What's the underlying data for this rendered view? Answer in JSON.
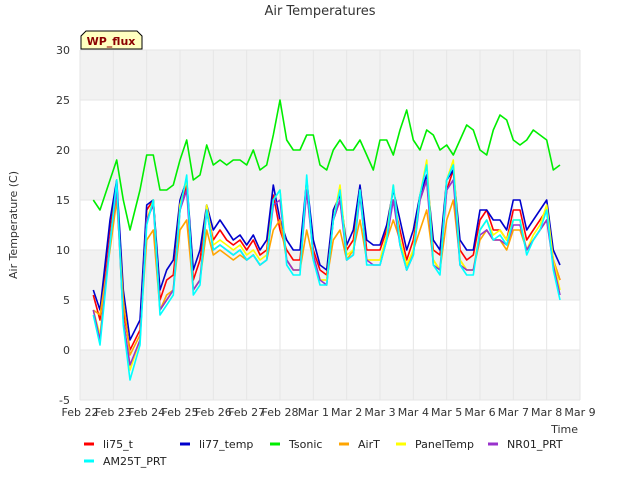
{
  "chart_data": {
    "type": "line",
    "title": "Air Temperatures",
    "xlabel": "Time",
    "ylabel": "Air Temperature (C)",
    "badge": "WP_flux",
    "ylim": [
      -5,
      30
    ],
    "yticks": [
      -5,
      0,
      5,
      10,
      15,
      20,
      25,
      30
    ],
    "xlim": [
      0,
      15
    ],
    "x_tick_labels": [
      "Feb 22",
      "Feb 23",
      "Feb 24",
      "Feb 25",
      "Feb 26",
      "Feb 27",
      "Feb 28",
      "Mar 1",
      "Mar 2",
      "Mar 3",
      "Mar 4",
      "Mar 5",
      "Mar 6",
      "Mar 7",
      "Mar 8",
      "Mar 9"
    ],
    "x": [
      0.4,
      0.6,
      0.9,
      1.1,
      1.3,
      1.5,
      1.8,
      2.0,
      2.2,
      2.4,
      2.6,
      2.8,
      3.0,
      3.2,
      3.4,
      3.6,
      3.8,
      4.0,
      4.2,
      4.4,
      4.6,
      4.8,
      5.0,
      5.2,
      5.4,
      5.6,
      5.8,
      6.0,
      6.2,
      6.4,
      6.6,
      6.8,
      7.0,
      7.2,
      7.4,
      7.6,
      7.8,
      8.0,
      8.2,
      8.4,
      8.6,
      8.8,
      9.0,
      9.2,
      9.4,
      9.6,
      9.8,
      10.0,
      10.2,
      10.4,
      10.6,
      10.8,
      11.0,
      11.2,
      11.4,
      11.6,
      11.8,
      12.0,
      12.2,
      12.4,
      12.6,
      12.8,
      13.0,
      13.2,
      13.4,
      13.6,
      13.8,
      14.0,
      14.2,
      14.4
    ],
    "grid": true,
    "bands": "alternating light gray",
    "legend_position": "bottom",
    "series": [
      {
        "name": "li75_t",
        "color": "#ff0000",
        "values": [
          5.5,
          3,
          12,
          16.5,
          4,
          0,
          2,
          14,
          15,
          5,
          7,
          7.5,
          14,
          16.5,
          7,
          9,
          14,
          11,
          12,
          11,
          10.5,
          11,
          10,
          11,
          9.5,
          10,
          15.5,
          12,
          10,
          9,
          9,
          16,
          10,
          8,
          7.5,
          13,
          15,
          10,
          11,
          16,
          10,
          10,
          10,
          12,
          15,
          12,
          9,
          11,
          15,
          17,
          10,
          9.5,
          16,
          18,
          10,
          9,
          9.5,
          13,
          14,
          12,
          12,
          11,
          14,
          14,
          11,
          12,
          13,
          14,
          9,
          7
        ]
      },
      {
        "name": "li77_temp",
        "color": "#0000cc",
        "values": [
          6,
          4,
          13,
          17,
          6,
          1,
          3,
          14.5,
          15,
          6,
          8,
          9,
          15,
          17,
          8,
          10,
          14.5,
          12,
          13,
          12,
          11,
          11.5,
          10.5,
          11.5,
          10,
          11,
          16.5,
          13,
          11,
          10,
          10,
          17,
          11,
          8.5,
          8,
          14,
          15.5,
          10.5,
          12,
          16.5,
          11,
          10.5,
          10.5,
          12.5,
          16,
          13,
          10,
          12,
          15.5,
          17.5,
          11,
          10,
          17,
          18,
          11,
          10,
          10,
          14,
          14,
          13,
          13,
          12,
          15,
          15,
          12,
          13,
          14,
          15,
          10,
          8.5
        ]
      },
      {
        "name": "Tsonic",
        "color": "#00ee00",
        "values": [
          15,
          14,
          17,
          19,
          15,
          12,
          16,
          19.5,
          19.5,
          16,
          16,
          16.5,
          19,
          21,
          17,
          17.5,
          20.5,
          18.5,
          19,
          18.5,
          19,
          19,
          18.5,
          20,
          18,
          18.5,
          21.5,
          25,
          21,
          20,
          20,
          21.5,
          21.5,
          18.5,
          18,
          20,
          21,
          20,
          20,
          21,
          19.5,
          18,
          21,
          21,
          19.5,
          22,
          24,
          21,
          20,
          22,
          21.5,
          20,
          20.5,
          19.5,
          21,
          22.5,
          22,
          20,
          19.5,
          22,
          23.5,
          23,
          21,
          20.5,
          21,
          22,
          21.5,
          21,
          18,
          18.5
        ]
      },
      {
        "name": "AirT",
        "color": "#ffa500",
        "values": [
          4,
          3.5,
          10,
          15,
          5,
          -0.5,
          1.5,
          11,
          12,
          4,
          5.5,
          6,
          12,
          13,
          6,
          7,
          12,
          9.5,
          10,
          9.5,
          9,
          9.5,
          9,
          9.5,
          8.5,
          9,
          12,
          13,
          9,
          8,
          8,
          12,
          9,
          7,
          7,
          11,
          12,
          9,
          10,
          13,
          9,
          9,
          9,
          11,
          13,
          11,
          8,
          10,
          12,
          14,
          9,
          8,
          13,
          15,
          9,
          8,
          8,
          11,
          12,
          11,
          11,
          10,
          12,
          12,
          10,
          11,
          12,
          13,
          9,
          7
        ]
      },
      {
        "name": "PanelTemp",
        "color": "#ffff00",
        "values": [
          4,
          1.5,
          11,
          16,
          3,
          -2,
          1,
          13,
          15,
          4,
          5,
          6,
          14.5,
          17,
          6,
          7,
          14.5,
          10.5,
          11,
          10.5,
          10,
          10.5,
          9.5,
          10,
          9,
          9.5,
          15,
          16,
          9,
          8,
          8,
          16.5,
          9.5,
          7,
          7,
          13,
          16.5,
          9.5,
          10,
          16,
          9,
          9,
          9,
          11.5,
          16.5,
          11,
          8.5,
          10,
          15.5,
          19,
          9,
          8,
          17,
          19,
          9,
          8,
          8,
          12,
          13,
          11.5,
          12,
          11,
          13,
          13,
          10,
          11.5,
          12.5,
          14.5,
          9,
          6
        ]
      },
      {
        "name": "NR01_PRT",
        "color": "#9932cc",
        "values": [
          4,
          1,
          11,
          16,
          3,
          -1.5,
          1,
          13,
          14.5,
          4,
          5,
          6,
          14,
          16,
          6,
          7,
          14,
          10,
          10.5,
          10,
          9.5,
          10,
          9,
          9.5,
          8.5,
          9,
          14.5,
          15,
          9,
          8,
          8,
          16,
          9.5,
          7,
          6.5,
          13,
          15,
          9,
          9.5,
          15.5,
          9,
          8.5,
          8.5,
          11,
          15,
          10.5,
          8,
          9.5,
          15,
          17,
          8.5,
          8,
          16,
          17,
          8.5,
          8,
          8,
          11.5,
          12,
          11,
          11,
          10.5,
          12.5,
          12.5,
          10,
          11,
          12,
          13,
          8.5,
          5.5
        ]
      },
      {
        "name": "AM25T_PRT",
        "color": "#00ffff",
        "values": [
          3.5,
          0.5,
          10.5,
          17,
          2.5,
          -3,
          0.5,
          12.5,
          15,
          3.5,
          4.5,
          5.5,
          14,
          17.5,
          5.5,
          6.5,
          14,
          10,
          10.5,
          10,
          9.5,
          10,
          9,
          9.5,
          8.5,
          9,
          15,
          16,
          8.5,
          7.5,
          7.5,
          17.5,
          9,
          6.5,
          6.5,
          13,
          16,
          9,
          9.5,
          16,
          8.5,
          8.5,
          8.5,
          11,
          16.5,
          10.5,
          8,
          9.5,
          15.5,
          18.5,
          8.5,
          7.5,
          17,
          18.5,
          8.5,
          7.5,
          7.5,
          12,
          13,
          11,
          11.5,
          10.5,
          13,
          13,
          9.5,
          11,
          12,
          14,
          8,
          5
        ]
      }
    ]
  }
}
